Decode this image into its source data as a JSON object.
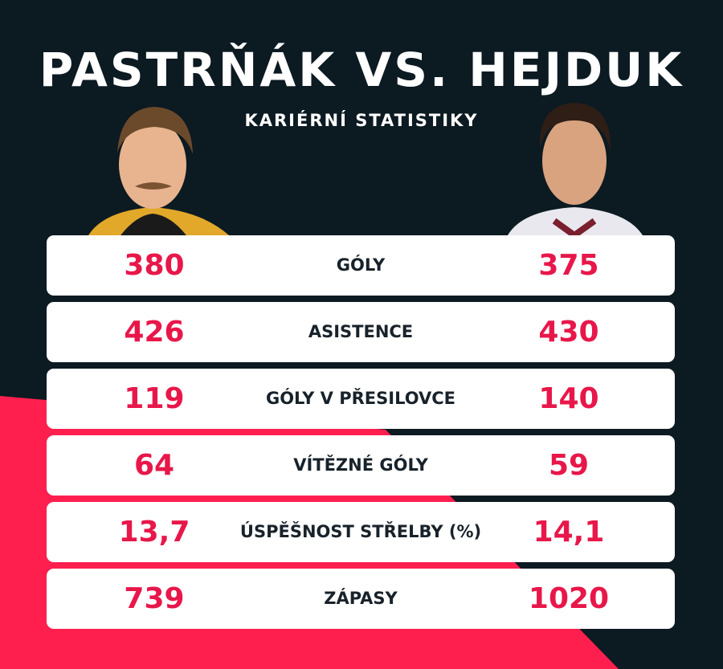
{
  "header": {
    "title": "PASTRŇÁK VS. HEJDUK",
    "subtitle": "KARIÉRNÍ STATISTIKY"
  },
  "table": {
    "rows": [
      {
        "left": "380",
        "label": "GÓLY",
        "right": "375"
      },
      {
        "left": "426",
        "label": "ASISTENCE",
        "right": "430"
      },
      {
        "left": "119",
        "label": "GÓLY V PŘESILOVCE",
        "right": "140"
      },
      {
        "left": "64",
        "label": "VÍTĚZNÉ GÓLY",
        "right": "59"
      },
      {
        "left": "13,7",
        "label": "ÚSPĚŠNOST STŘELBY (%)",
        "right": "14,1"
      },
      {
        "left": "739",
        "label": "ZÁPASY",
        "right": "1020"
      }
    ]
  }
}
